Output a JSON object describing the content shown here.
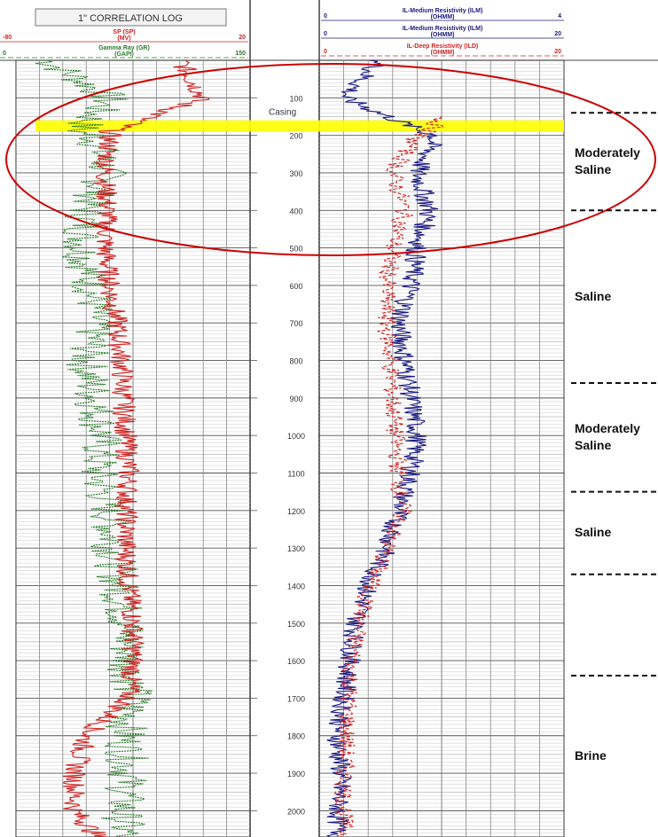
{
  "chart_data": {
    "type": "line",
    "title": "1\" CORRELATION LOG",
    "depth_ticks": [
      100,
      200,
      300,
      400,
      500,
      600,
      700,
      800,
      900,
      1000,
      1100,
      1200,
      1300,
      1400,
      1500,
      1600,
      1700,
      1800,
      1900,
      2000
    ],
    "depth_range": [
      0,
      2070
    ],
    "casing_label": "Casing",
    "casing_depth": 110,
    "highlight_depth_range": [
      160,
      190
    ],
    "highlight_color": "#ffff00",
    "circle_color": "#cc0000",
    "left_track_headers": [
      {
        "name": "SP (SP)",
        "unit": "(MV)",
        "min": "-80",
        "max": "20",
        "color": "#cc2222"
      },
      {
        "name": "Gamma Ray (GR)",
        "unit": "(GAPI)",
        "min": "0",
        "max": "150",
        "color": "#2a7a2a"
      }
    ],
    "right_track_headers": [
      {
        "name": "IL-Medium Resistivity (ILM)",
        "unit": "(OHMM)",
        "min": "0",
        "max": "4",
        "color": "#1a1a80"
      },
      {
        "name": "IL-Medium Resistivity (ILM)",
        "unit": "(OHMM)",
        "min": "0",
        "max": "20",
        "color": "#1a1a80"
      },
      {
        "name": "IL-Deep Resistivity (ILD)",
        "unit": "(OHMM)",
        "min": "0",
        "max": "20",
        "color": "#cc2222"
      }
    ],
    "series": [
      {
        "name": "Gamma Ray (GR)",
        "color": "#2a7a2a",
        "depth": [
          0,
          100,
          190,
          200,
          300,
          400,
          500,
          600,
          700,
          800,
          900,
          1000,
          1100,
          1200,
          1300,
          1400,
          1500,
          1600,
          1700,
          1800,
          1900,
          2000,
          2070
        ],
        "values": [
          20,
          60,
          40,
          50,
          58,
          45,
          42,
          48,
          52,
          45,
          50,
          55,
          52,
          60,
          62,
          66,
          70,
          72,
          75,
          70,
          72,
          68,
          70
        ]
      },
      {
        "name": "SP (SP)",
        "color": "#cc2222",
        "depth": [
          0,
          100,
          190,
          200,
          300,
          400,
          500,
          600,
          700,
          800,
          900,
          1000,
          1100,
          1200,
          1300,
          1400,
          1500,
          1600,
          1700,
          1800,
          1900,
          2000,
          2070
        ],
        "values": [
          -10,
          0,
          -40,
          -40,
          -42,
          -41,
          -42,
          -40,
          -37,
          -35,
          -34,
          -33,
          -32,
          -33,
          -33,
          -32,
          -30,
          -30,
          -32,
          -50,
          -55,
          -55,
          -45
        ]
      },
      {
        "name": "IL-Medium Resistivity (ILM)",
        "color": "#1a1a80",
        "depth": [
          0,
          100,
          190,
          200,
          300,
          400,
          500,
          600,
          700,
          800,
          900,
          1000,
          1100,
          1200,
          1300,
          1400,
          1500,
          1600,
          1700,
          1800,
          1900,
          2000,
          2070
        ],
        "values": [
          1.0,
          0.4,
          1.7,
          1.9,
          1.6,
          1.8,
          1.6,
          1.5,
          1.3,
          1.4,
          1.5,
          1.6,
          1.5,
          1.3,
          1.1,
          0.8,
          0.6,
          0.5,
          0.4,
          0.3,
          0.35,
          0.3,
          0.3
        ]
      },
      {
        "name": "IL-Deep Resistivity (ILD)",
        "color": "#cc2222",
        "depth": [
          150,
          190,
          200,
          300,
          400,
          500,
          600,
          700,
          800,
          900,
          1000,
          1100,
          1200,
          1300,
          1400,
          1500,
          1600,
          1700,
          1800,
          1900,
          2000,
          2070
        ],
        "values": [
          10,
          9,
          8,
          6,
          7,
          6,
          5.5,
          5.5,
          5.8,
          6.0,
          6.2,
          6.5,
          6.8,
          5.5,
          4.2,
          3.2,
          2.7,
          2.4,
          2.2,
          2.1,
          2.0,
          2.0
        ]
      }
    ],
    "zones": [
      {
        "label": "Moderately Saline",
        "top": 140,
        "bottom": 400
      },
      {
        "label": "Saline",
        "top": 400,
        "bottom": 860
      },
      {
        "label": "Moderately Saline",
        "top": 860,
        "bottom": 1150
      },
      {
        "label": "Saline",
        "top": 1150,
        "bottom": 1370
      },
      {
        "label": "",
        "top": 1370,
        "bottom": 1640
      },
      {
        "label": "Brine",
        "top": 1640,
        "bottom": 2070
      }
    ]
  }
}
